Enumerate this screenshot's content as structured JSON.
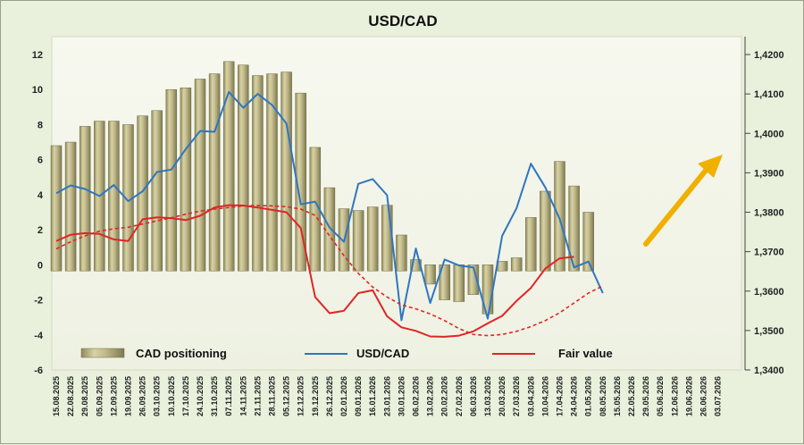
{
  "chart_data": {
    "type": "bar",
    "title": "USD/CAD",
    "x_labels": [
      "15.08.2025",
      "22.08.2025",
      "29.08.2025",
      "05.09.2025",
      "12.09.2025",
      "19.09.2025",
      "26.09.2025",
      "03.10.2025",
      "10.10.2025",
      "17.10.2025",
      "24.10.2025",
      "31.10.2025",
      "07.11.2025",
      "14.11.2025",
      "21.11.2025",
      "28.11.2025",
      "05.12.2025",
      "12.12.2025",
      "19.12.2025",
      "26.12.2025",
      "02.01.2026",
      "09.01.2026",
      "16.01.2026",
      "23.01.2026",
      "30.01.2026",
      "06.02.2026",
      "13.02.2026",
      "20.02.2026",
      "27.02.2026",
      "06.03.2026",
      "13.03.2026",
      "20.03.2026",
      "27.03.2026",
      "03.04.2026",
      "10.04.2026",
      "17.04.2026",
      "24.04.2026",
      "01.05.2026",
      "08.05.2026",
      "15.05.2026",
      "22.05.2026",
      "29.05.2026",
      "05.06.2026",
      "12.06.2026",
      "19.06.2026",
      "26.06.2026",
      "03.07.2026"
    ],
    "left_axis": {
      "min": -6,
      "max": 12,
      "ticks": [
        -6,
        -4,
        -2,
        0,
        2,
        4,
        6,
        8,
        10,
        12
      ]
    },
    "right_axis": {
      "min": 1.34,
      "max": 1.42,
      "ticks": [
        "1,3400",
        "1,3500",
        "1,3600",
        "1,3700",
        "1,3800",
        "1,3900",
        "1,4000",
        "1,4100",
        "1,4200"
      ],
      "tick_values": [
        1.34,
        1.35,
        1.36,
        1.37,
        1.38,
        1.39,
        1.4,
        1.41,
        1.42
      ]
    },
    "series": [
      {
        "name": "CAD positioning",
        "type": "bar",
        "axis": "left",
        "color": "#b5ae7d",
        "values": [
          6.8,
          7.0,
          7.9,
          8.2,
          8.2,
          8.0,
          8.5,
          8.8,
          10.0,
          10.1,
          10.6,
          10.9,
          11.6,
          11.4,
          10.8,
          10.9,
          11.0,
          9.8,
          6.7,
          4.4,
          3.2,
          3.1,
          3.3,
          3.4,
          1.7,
          0.3,
          -1.1,
          -2.0,
          -2.1,
          -1.7,
          -2.8,
          0.2,
          0.4,
          2.7,
          4.2,
          5.9,
          4.5,
          3.0
        ]
      },
      {
        "name": "USD/CAD",
        "type": "line",
        "axis": "right",
        "color": "#2f76c0",
        "values": [
          1.3848,
          1.3868,
          1.3859,
          1.3841,
          1.3869,
          1.3828,
          1.3853,
          1.3902,
          1.3908,
          1.396,
          1.4006,
          1.4004,
          1.4105,
          1.4065,
          1.41,
          1.4072,
          1.4025,
          1.382,
          1.3827,
          1.3761,
          1.3725,
          1.3872,
          1.3884,
          1.3843,
          1.3526,
          1.3708,
          1.357,
          1.368,
          1.3665,
          1.366,
          1.353,
          1.374,
          1.381,
          1.3923,
          1.3863,
          1.3783,
          1.366,
          1.3675,
          1.3595
        ]
      },
      {
        "name": "Fair value",
        "type": "line",
        "axis": "right",
        "color": "#e02525",
        "values": [
          1.3727,
          1.3743,
          1.3747,
          1.3745,
          1.3731,
          1.3727,
          1.3782,
          1.3787,
          1.3785,
          1.378,
          1.3791,
          1.3812,
          1.3818,
          1.3817,
          1.3812,
          1.3806,
          1.38,
          1.376,
          1.3585,
          1.3544,
          1.355,
          1.3595,
          1.3602,
          1.3536,
          1.3508,
          1.3499,
          1.3485,
          1.3484,
          1.3487,
          1.3498,
          1.3518,
          1.3537,
          1.3575,
          1.3608,
          1.3657,
          1.3683,
          1.3687
        ]
      },
      {
        "name": "Fair value trend",
        "type": "dashed-line",
        "axis": "right",
        "color": "#e02525",
        "values": [
          1.3707,
          1.3725,
          1.374,
          1.3752,
          1.3758,
          1.3762,
          1.377,
          1.3778,
          1.3786,
          1.3795,
          1.3803,
          1.3808,
          1.3812,
          1.3816,
          1.3817,
          1.3816,
          1.3814,
          1.3808,
          1.3792,
          1.374,
          1.369,
          1.3645,
          1.361,
          1.3585,
          1.3565,
          1.3555,
          1.3542,
          1.3525,
          1.3505,
          1.349,
          1.3487,
          1.349,
          1.3498,
          1.351,
          1.3525,
          1.3545,
          1.357,
          1.3595,
          1.3613
        ]
      }
    ],
    "annotation": {
      "type": "arrow",
      "direction": "up-right",
      "color": "#f0b000"
    },
    "legend": {
      "placement": "bottom",
      "items": [
        "CAD positioning",
        "USD/CAD",
        "Fair value"
      ]
    },
    "grid": false
  }
}
